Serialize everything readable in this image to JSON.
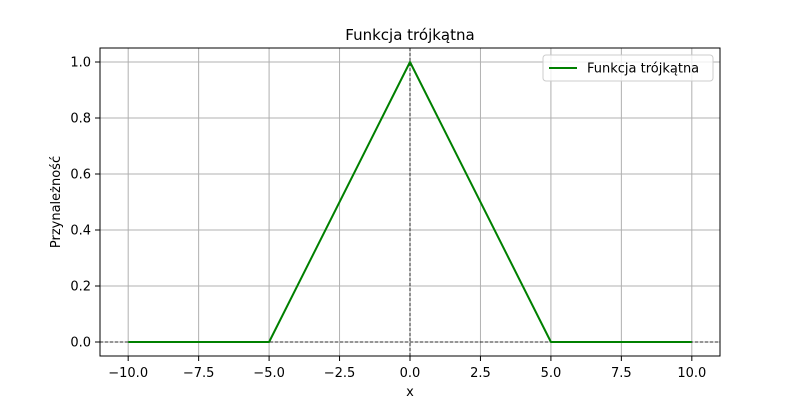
{
  "chart_data": {
    "type": "line",
    "title": "Funkcja trójkątna",
    "xlabel": "x",
    "ylabel": "Przynależność",
    "xlim": [
      -11,
      11
    ],
    "ylim": [
      -0.05,
      1.05
    ],
    "grid": true,
    "legend_position": "top-right",
    "x_ticks": [
      -10.0,
      -7.5,
      -5.0,
      -2.5,
      0.0,
      2.5,
      5.0,
      7.5,
      10.0
    ],
    "x_tick_labels": [
      "−10.0",
      "−7.5",
      "−5.0",
      "−2.5",
      "0.0",
      "2.5",
      "5.0",
      "7.5",
      "10.0"
    ],
    "y_ticks": [
      0.0,
      0.2,
      0.4,
      0.6,
      0.8,
      1.0
    ],
    "y_tick_labels": [
      "0.0",
      "0.2",
      "0.4",
      "0.6",
      "0.8",
      "1.0"
    ],
    "reference_lines": {
      "vertical_x": 0,
      "horizontal_y": 0,
      "color": "#000000",
      "style": "dashed"
    },
    "series": [
      {
        "name": "Funkcja trójkątna",
        "color": "#008000",
        "x": [
          -10,
          -5,
          0,
          5,
          10
        ],
        "y": [
          0,
          0,
          1,
          0,
          0
        ]
      }
    ]
  }
}
